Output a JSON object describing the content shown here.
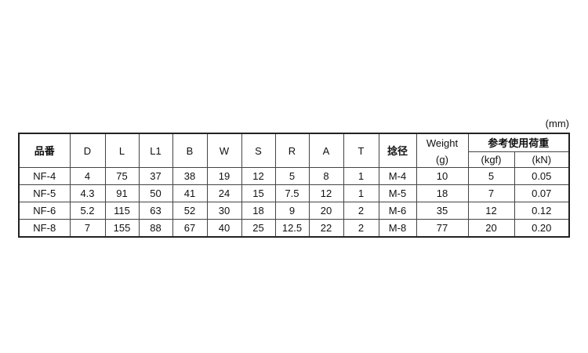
{
  "unit_label": "(mm)",
  "headers": [
    "品番",
    "D",
    "L",
    "L1",
    "B",
    "W",
    "S",
    "R",
    "A",
    "T",
    "捻径"
  ],
  "weight_header": {
    "label": "Weight",
    "unit": "(g)"
  },
  "load_header": {
    "label": "参考使用荷重",
    "units": [
      "(kgf)",
      "(kN)"
    ]
  },
  "rows": [
    [
      "NF-4",
      "4",
      "75",
      "37",
      "38",
      "19",
      "12",
      "5",
      "8",
      "1",
      "M-4",
      "10",
      "5",
      "0.05"
    ],
    [
      "NF-5",
      "4.3",
      "91",
      "50",
      "41",
      "24",
      "15",
      "7.5",
      "12",
      "1",
      "M-5",
      "18",
      "7",
      "0.07"
    ],
    [
      "NF-6",
      "5.2",
      "115",
      "63",
      "52",
      "30",
      "18",
      "9",
      "20",
      "2",
      "M-6",
      "35",
      "12",
      "0.12"
    ],
    [
      "NF-8",
      "7",
      "155",
      "88",
      "67",
      "40",
      "25",
      "12.5",
      "22",
      "2",
      "M-8",
      "77",
      "20",
      "0.20"
    ]
  ]
}
